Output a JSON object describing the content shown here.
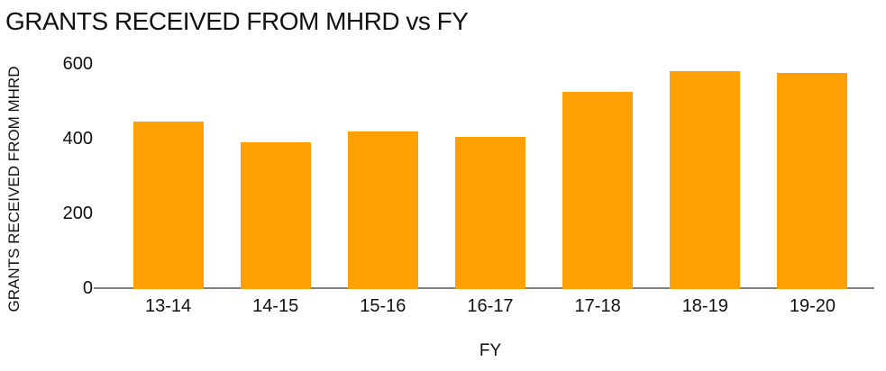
{
  "chart_data": {
    "type": "bar",
    "title": "GRANTS RECEIVED FROM MHRD vs FY",
    "xlabel": "FY",
    "ylabel": "GRANTS RECEIVED FROM MHRD",
    "categories": [
      "13-14",
      "14-15",
      "15-16",
      "16-17",
      "17-18",
      "18-19",
      "19-20"
    ],
    "values": [
      445,
      390,
      420,
      405,
      525,
      580,
      575
    ],
    "ylim": [
      0,
      600
    ],
    "y_ticks": [
      0,
      200,
      400,
      600
    ],
    "grid": "off",
    "legend": "none",
    "colors": {
      "bar": "#FFA105",
      "axis_line": "#7F7F7F",
      "text": "#111111"
    }
  }
}
